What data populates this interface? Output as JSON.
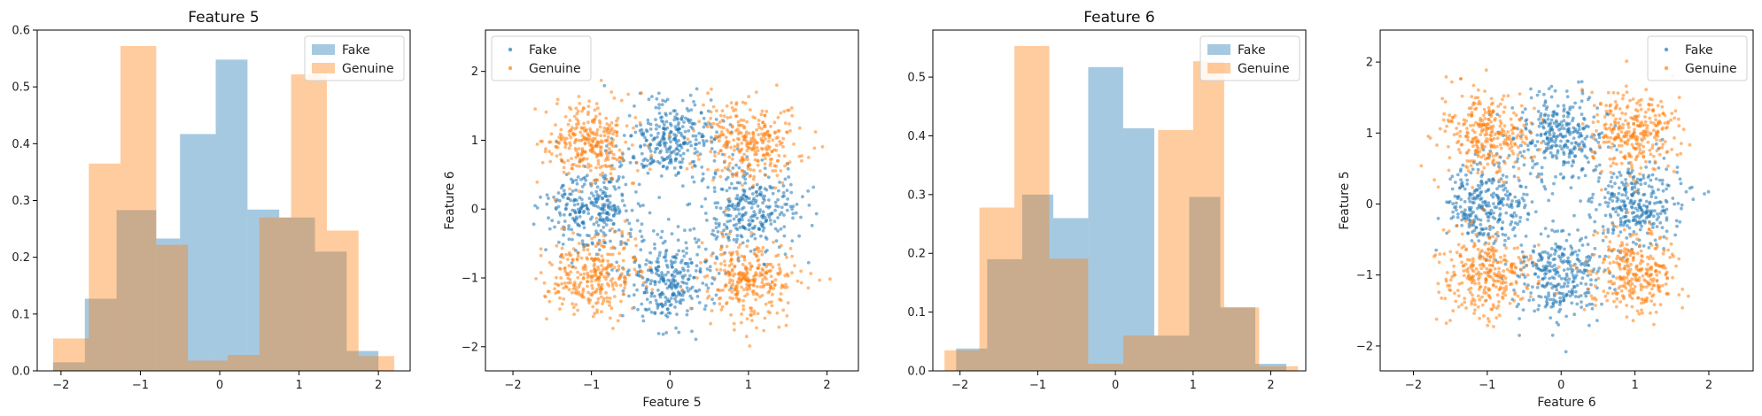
{
  "colors": {
    "fake": "#1f77b4",
    "genuine": "#ff7f0e"
  },
  "chart_data": [
    {
      "type": "histogram",
      "title": "Feature 5",
      "xlabel": "",
      "ylabel": "",
      "xlim": [
        -2.3,
        2.4
      ],
      "ylim": [
        0,
        0.6
      ],
      "xticks": [
        -2,
        -1,
        0,
        1,
        2
      ],
      "yticks": [
        0.0,
        0.1,
        0.2,
        0.3,
        0.4,
        0.5,
        0.6
      ],
      "legend": "top-right",
      "series": [
        {
          "name": "Fake",
          "color": "#1f77b4",
          "alpha": 0.4,
          "bins": [
            [
              -2.1,
              -1.7,
              0.015
            ],
            [
              -1.7,
              -1.3,
              0.127
            ],
            [
              -1.3,
              -0.8,
              0.283
            ],
            [
              -0.8,
              -0.5,
              0.233
            ],
            [
              -0.5,
              -0.05,
              0.417
            ],
            [
              -0.05,
              0.35,
              0.548
            ],
            [
              0.35,
              0.75,
              0.284
            ],
            [
              0.75,
              1.2,
              0.27
            ],
            [
              1.2,
              1.6,
              0.21
            ],
            [
              1.6,
              2.0,
              0.035
            ]
          ]
        },
        {
          "name": "Genuine",
          "color": "#ff7f0e",
          "alpha": 0.4,
          "bins": [
            [
              -2.1,
              -1.65,
              0.057
            ],
            [
              -1.65,
              -1.25,
              0.365
            ],
            [
              -1.25,
              -0.8,
              0.572
            ],
            [
              -0.8,
              -0.4,
              0.222
            ],
            [
              -0.4,
              0.1,
              0.018
            ],
            [
              0.1,
              0.5,
              0.028
            ],
            [
              0.5,
              0.9,
              0.27
            ],
            [
              0.9,
              1.35,
              0.522
            ],
            [
              1.35,
              1.75,
              0.247
            ],
            [
              1.75,
              2.2,
              0.026
            ]
          ]
        }
      ]
    },
    {
      "type": "scatter",
      "title": "",
      "xlabel": "Feature 5",
      "ylabel": "Feature 6",
      "xlim": [
        -2.35,
        2.4
      ],
      "ylim": [
        -2.35,
        2.6
      ],
      "xticks": [
        -2,
        -1,
        0,
        1,
        2
      ],
      "yticks": [
        -2,
        -1,
        0,
        1,
        2
      ],
      "legend": "top-left",
      "points_per_cluster": 300,
      "cluster_spread": 0.3,
      "series": [
        {
          "name": "Fake",
          "color": "#1f77b4",
          "centers": [
            [
              0,
              1
            ],
            [
              -1,
              0
            ],
            [
              1,
              0
            ],
            [
              0,
              -1
            ]
          ]
        },
        {
          "name": "Genuine",
          "color": "#ff7f0e",
          "centers": [
            [
              -1,
              1
            ],
            [
              1,
              1
            ],
            [
              -1,
              -1
            ],
            [
              1,
              -1
            ]
          ]
        }
      ]
    },
    {
      "type": "histogram",
      "title": "Feature 6",
      "xlabel": "",
      "ylabel": "",
      "xlim": [
        -2.35,
        2.45
      ],
      "ylim": [
        0,
        0.58
      ],
      "xticks": [
        -2,
        -1,
        0,
        1,
        2
      ],
      "yticks": [
        0.0,
        0.1,
        0.2,
        0.3,
        0.4,
        0.5
      ],
      "legend": "top-right",
      "series": [
        {
          "name": "Fake",
          "color": "#1f77b4",
          "alpha": 0.4,
          "bins": [
            [
              -2.05,
              -1.65,
              0.038
            ],
            [
              -1.65,
              -1.2,
              0.19
            ],
            [
              -1.2,
              -0.8,
              0.3
            ],
            [
              -0.8,
              -0.35,
              0.26
            ],
            [
              -0.35,
              0.1,
              0.517
            ],
            [
              0.1,
              0.5,
              0.413
            ],
            [
              0.5,
              0.95,
              0.06
            ],
            [
              0.95,
              1.35,
              0.296
            ],
            [
              1.35,
              1.8,
              0.108
            ],
            [
              1.8,
              2.2,
              0.012
            ]
          ]
        },
        {
          "name": "Genuine",
          "color": "#ff7f0e",
          "alpha": 0.4,
          "bins": [
            [
              -2.2,
              -1.75,
              0.035
            ],
            [
              -1.75,
              -1.3,
              0.278
            ],
            [
              -1.3,
              -0.85,
              0.553
            ],
            [
              -0.85,
              -0.35,
              0.191
            ],
            [
              -0.35,
              0.1,
              0.012
            ],
            [
              0.1,
              0.55,
              0.06
            ],
            [
              0.55,
              1.0,
              0.41
            ],
            [
              1.0,
              1.4,
              0.527
            ],
            [
              1.4,
              1.85,
              0.108
            ],
            [
              1.85,
              2.35,
              0.008
            ]
          ]
        }
      ]
    },
    {
      "type": "scatter",
      "title": "",
      "xlabel": "Feature 6",
      "ylabel": "Feature 5",
      "xlim": [
        -2.45,
        2.6
      ],
      "ylim": [
        -2.35,
        2.45
      ],
      "xticks": [
        -2,
        -1,
        0,
        1,
        2
      ],
      "yticks": [
        -2,
        -1,
        0,
        1,
        2
      ],
      "legend": "top-right",
      "points_per_cluster": 300,
      "cluster_spread": 0.3,
      "series": [
        {
          "name": "Fake",
          "color": "#1f77b4",
          "centers": [
            [
              0,
              1
            ],
            [
              -1,
              0
            ],
            [
              1,
              0
            ],
            [
              0,
              -1
            ]
          ]
        },
        {
          "name": "Genuine",
          "color": "#ff7f0e",
          "centers": [
            [
              -1,
              1
            ],
            [
              1,
              1
            ],
            [
              -1,
              -1
            ],
            [
              1,
              -1
            ]
          ]
        }
      ]
    }
  ]
}
